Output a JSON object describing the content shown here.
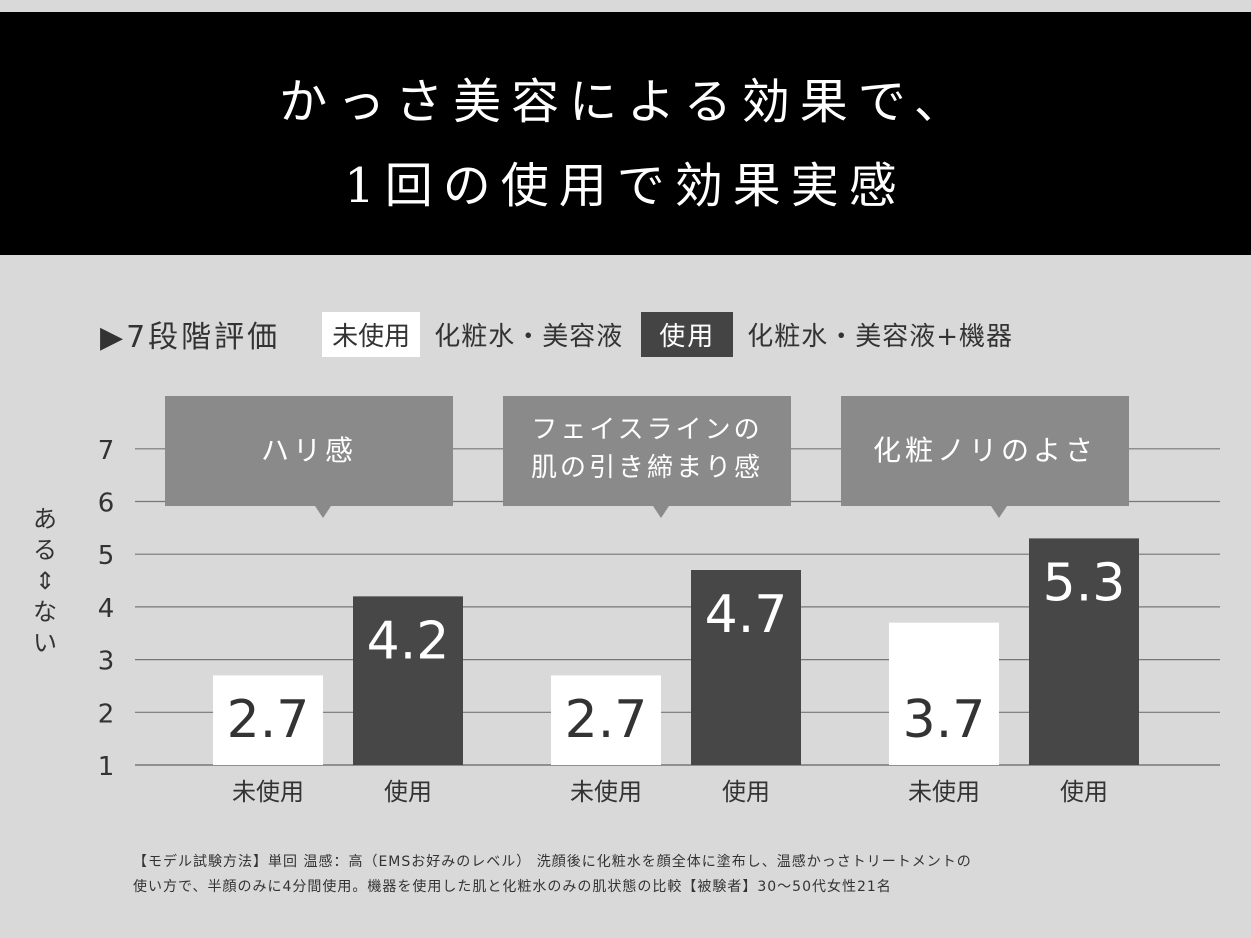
{
  "header": {
    "title_line1": "かっさ美容による効果で、",
    "title_line2": "1回の使用で効果実感"
  },
  "legend": {
    "scale": "▶7段階評価",
    "unused_badge": "未使用",
    "unused_desc": "化粧水・美容液",
    "used_badge": "使用",
    "used_desc": "化粧水・美容液+機器"
  },
  "y_axis_label": [
    "ある",
    "⇕",
    "ない"
  ],
  "colors": {
    "header_bg": "#000000",
    "background": "#d9d9d9",
    "unused_bar": "#ffffff",
    "used_bar": "#474747",
    "callout": "#8a8a8a",
    "grid": "#777777"
  },
  "chart_data": {
    "type": "bar",
    "ylim": [
      1,
      7
    ],
    "yticks": [
      1,
      2,
      3,
      4,
      5,
      6,
      7
    ],
    "groups": [
      {
        "label_lines": [
          "ハリ感"
        ],
        "unused": 2.7,
        "used": 4.2
      },
      {
        "label_lines": [
          "フェイスラインの",
          "肌の引き締まり感"
        ],
        "unused": 2.7,
        "used": 4.7
      },
      {
        "label_lines": [
          "化粧ノリのよさ"
        ],
        "unused": 3.7,
        "used": 5.3
      }
    ],
    "series": [
      {
        "name": "未使用",
        "key": "unused"
      },
      {
        "name": "使用",
        "key": "used"
      }
    ],
    "value_labels": {
      "unused": [
        "2.7",
        "2.7",
        "3.7"
      ],
      "used": [
        "4.2",
        "4.7",
        "5.3"
      ]
    }
  },
  "footnote": {
    "line1": "【モデル試験方法】単回 温感：高（EMSお好みのレベル） 洗顔後に化粧水を顔全体に塗布し、温感かっさトリートメントの",
    "line2": "使い方で、半顔のみに4分間使用。機器を使用した肌と化粧水のみの肌状態の比較【被験者】30〜50代女性21名"
  }
}
